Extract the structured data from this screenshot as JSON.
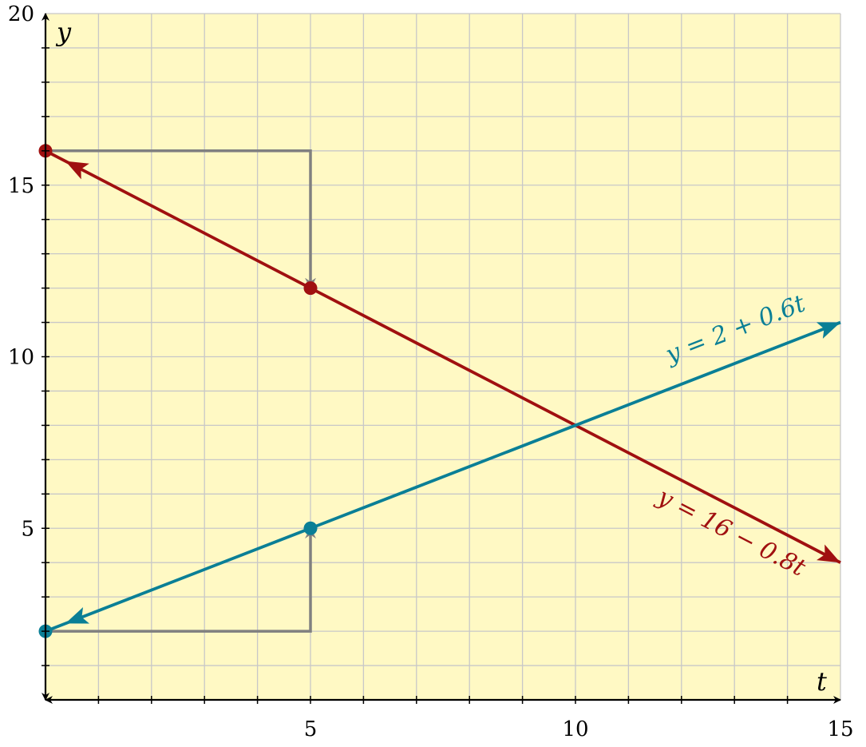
{
  "chart_data": {
    "type": "line",
    "xlabel": "t",
    "ylabel": "y",
    "xlim": [
      0,
      15
    ],
    "ylim": [
      0,
      20
    ],
    "x_ticks": [
      5,
      10,
      15
    ],
    "y_ticks": [
      5,
      10,
      15,
      20
    ],
    "x_minor_step": 1,
    "y_minor_step": 1,
    "grid": true,
    "background_color": "#fff9c4",
    "grid_color": "#c8c8c8",
    "series": [
      {
        "label": "y = 16 − 0.8t",
        "color": "#a01010",
        "x": [
          0,
          15
        ],
        "y": [
          16,
          4
        ],
        "points": [
          {
            "x": 0,
            "y": 16
          },
          {
            "x": 5,
            "y": 12
          }
        ]
      },
      {
        "label": "y = 2 + 0.6t",
        "color": "#0a7f96",
        "x": [
          0,
          15
        ],
        "y": [
          2,
          11
        ],
        "points": [
          {
            "x": 0,
            "y": 2
          },
          {
            "x": 5,
            "y": 5
          }
        ]
      }
    ],
    "guides": {
      "color": "#808080",
      "paths": [
        [
          {
            "x": 0,
            "y": 16
          },
          {
            "x": 5,
            "y": 16
          },
          {
            "x": 5,
            "y": 12
          }
        ],
        [
          {
            "x": 0,
            "y": 2
          },
          {
            "x": 5,
            "y": 2
          },
          {
            "x": 5,
            "y": 5
          }
        ]
      ]
    }
  }
}
